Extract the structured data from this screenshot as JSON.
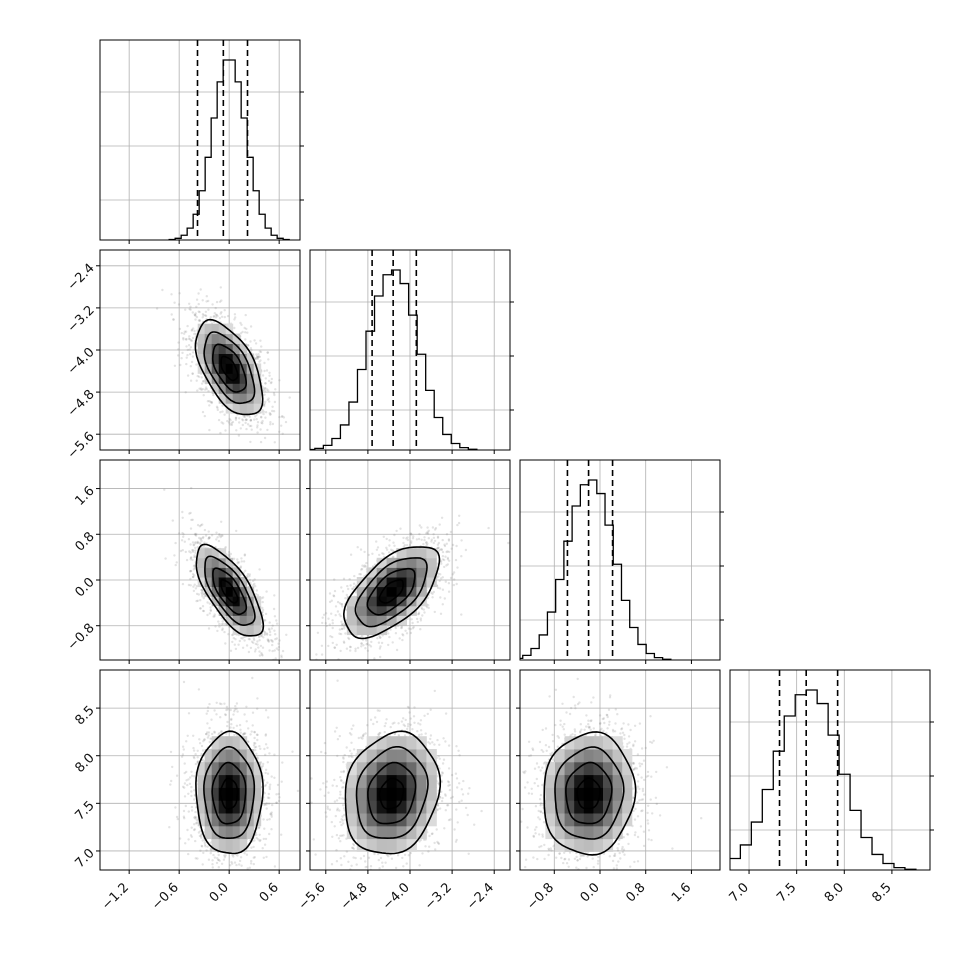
{
  "chart_data": {
    "type": "corner",
    "title": "",
    "n_params": 4,
    "grid": true,
    "histogram_bins": 20,
    "quantiles": [
      0.16,
      0.5,
      0.84
    ],
    "params": [
      {
        "mean": 0.0,
        "sd": 0.2,
        "range": [
          -1.55,
          0.85
        ],
        "ticks": [
          -1.2,
          -0.6,
          0.0,
          0.6
        ],
        "tick_labels": [
          "−1.2",
          "−0.6",
          "0.0",
          "0.6"
        ],
        "quantile_values": [
          -0.38,
          -0.07,
          0.22
        ]
      },
      {
        "mean": -4.35,
        "sd": 0.45,
        "range": [
          -5.9,
          -2.1
        ],
        "ticks": [
          -5.6,
          -4.8,
          -4.0,
          -3.2,
          -2.4
        ],
        "tick_labels": [
          "−5.6",
          "−4.8",
          "−4.0",
          "−3.2",
          "−2.4"
        ],
        "quantile_values": [
          -4.72,
          -4.32,
          -3.88
        ]
      },
      {
        "mean": -0.2,
        "sd": 0.4,
        "range": [
          -1.4,
          2.1
        ],
        "ticks": [
          -0.8,
          0.0,
          0.8,
          1.6
        ],
        "tick_labels": [
          "−0.8",
          "0.0",
          "0.8",
          "1.6"
        ],
        "quantile_values": [
          -0.57,
          -0.2,
          0.22
        ]
      },
      {
        "mean": 7.6,
        "sd": 0.32,
        "range": [
          6.8,
          8.9
        ],
        "ticks": [
          7.0,
          7.5,
          8.0,
          8.5
        ],
        "tick_labels": [
          "7.0",
          "7.5",
          "8.0",
          "8.5"
        ],
        "quantile_values": [
          7.32,
          7.6,
          7.93
        ]
      }
    ],
    "correlations": [
      {
        "i": 1,
        "j": 0,
        "rho": -0.55
      },
      {
        "i": 2,
        "j": 0,
        "rho": -0.7
      },
      {
        "i": 2,
        "j": 1,
        "rho": 0.6
      },
      {
        "i": 3,
        "j": 0,
        "rho": 0.0
      },
      {
        "i": 3,
        "j": 1,
        "rho": 0.15
      },
      {
        "i": 3,
        "j": 2,
        "rho": 0.05
      }
    ],
    "contour_levels_sigma": [
      0.5,
      1.0,
      1.5,
      2.0
    ],
    "colors": {
      "contour": "#000000",
      "density_max": "#000000",
      "points": "#7f7f7f",
      "grid": "#b0b0b0"
    }
  }
}
